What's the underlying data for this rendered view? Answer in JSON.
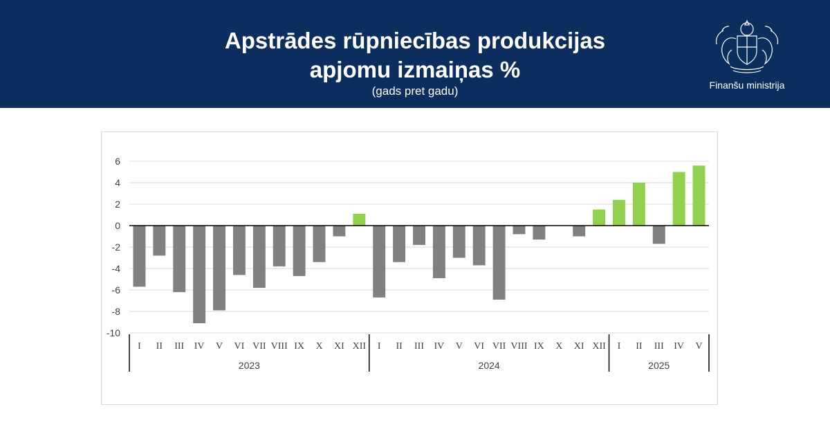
{
  "header": {
    "title_line1": "Apstrādes rūpniecības produkcijas",
    "title_line2": "apjomu izmaiņas %",
    "subtitle": "(gads pret gadu)",
    "logo_text": "Finanšu ministrija"
  },
  "colors": {
    "header_bg": "#0c2e5f",
    "negative_bar": "#808080",
    "positive_bar": "#92d050"
  },
  "chart_data": {
    "type": "bar",
    "ylim": [
      -10,
      6
    ],
    "yticks": [
      6,
      4,
      2,
      0,
      -2,
      -4,
      -6,
      -8,
      -10
    ],
    "grid": true,
    "legend": "none",
    "groups": [
      {
        "year": "2023",
        "months": [
          "I",
          "II",
          "III",
          "IV",
          "V",
          "VI",
          "VII",
          "VIII",
          "IX",
          "X",
          "XI",
          "XII"
        ]
      },
      {
        "year": "2024",
        "months": [
          "I",
          "II",
          "III",
          "IV",
          "V",
          "VI",
          "VII",
          "VIII",
          "IX",
          "X",
          "XI",
          "XII"
        ]
      },
      {
        "year": "2025",
        "months": [
          "I",
          "II",
          "III",
          "IV",
          "V"
        ]
      }
    ],
    "values": [
      -5.7,
      -2.8,
      -6.2,
      -9.1,
      -7.9,
      -4.6,
      -5.8,
      -3.8,
      -4.7,
      -3.4,
      -1.0,
      1.1,
      -6.7,
      -3.4,
      -1.8,
      -4.9,
      -3.0,
      -3.7,
      -6.9,
      -0.8,
      -1.3,
      0.0,
      -1.0,
      1.5,
      2.4,
      4.0,
      -1.7,
      5.0,
      5.6
    ]
  }
}
